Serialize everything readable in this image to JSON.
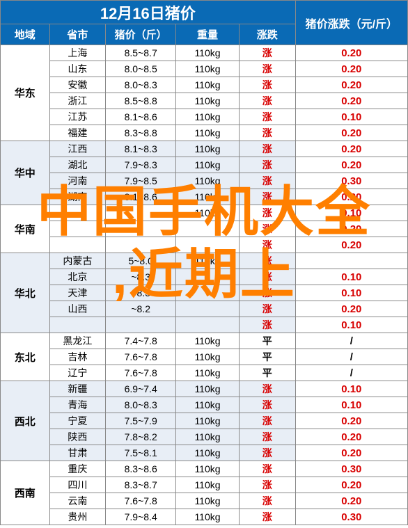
{
  "title": "12月16日猪价",
  "changeHeader": "猪价涨跌（元/斤）",
  "subHeaders": [
    "地域",
    "省市",
    "猪价（斤）",
    "重量",
    "涨跌"
  ],
  "overlay": {
    "line1": "中国手机大全",
    "line2": ",近期上"
  },
  "colors": {
    "headerBg": "#0a6ab5",
    "headerText": "#ffffff",
    "altRowBg": "#e8eef6",
    "upColor": "#d80000",
    "overlayColor": "#ff7f00",
    "border": "#888888"
  },
  "regions": [
    {
      "name": "华东",
      "alt": false,
      "rows": [
        {
          "prov": "上海",
          "price": "8.5~8.7",
          "wt": "110kg",
          "trend": "涨",
          "chg": "0.20"
        },
        {
          "prov": "山东",
          "price": "8.0~8.5",
          "wt": "110kg",
          "trend": "涨",
          "chg": "0.20"
        },
        {
          "prov": "安徽",
          "price": "8.0~8.3",
          "wt": "110kg",
          "trend": "涨",
          "chg": "0.20"
        },
        {
          "prov": "浙江",
          "price": "8.5~8.8",
          "wt": "110kg",
          "trend": "涨",
          "chg": "0.20"
        },
        {
          "prov": "江苏",
          "price": "8.1~8.6",
          "wt": "110kg",
          "trend": "涨",
          "chg": "0.10"
        },
        {
          "prov": "福建",
          "price": "8.3~8.8",
          "wt": "110kg",
          "trend": "涨",
          "chg": "0.20"
        }
      ]
    },
    {
      "name": "华中",
      "alt": true,
      "rows": [
        {
          "prov": "江西",
          "price": "8.1~8.3",
          "wt": "110kg",
          "trend": "涨",
          "chg": "0.20"
        },
        {
          "prov": "湖北",
          "price": "7.9~8.3",
          "wt": "110kg",
          "trend": "涨",
          "chg": "0.20"
        },
        {
          "prov": "河南",
          "price": "7.9~8.5",
          "wt": "110kg",
          "trend": "涨",
          "chg": "0.30"
        },
        {
          "prov": "湖南",
          "price": "8.1~8.6",
          "wt": "110kg",
          "trend": "涨",
          "chg": "0.20"
        }
      ]
    },
    {
      "name": "华南",
      "alt": false,
      "rows": [
        {
          "prov": "",
          "price": "",
          "wt": "110kg",
          "trend": "涨",
          "chg": "0.10"
        },
        {
          "prov": "",
          "price": "",
          "wt": "",
          "trend": "涨",
          "chg": "0.20"
        },
        {
          "prov": "",
          "price": "",
          "wt": "",
          "trend": "涨",
          "chg": "0.20"
        }
      ]
    },
    {
      "name": "华北",
      "alt": true,
      "rows": [
        {
          "prov": "内蒙古",
          "price": "5~8.0",
          "wt": "110kg",
          "trend": "涨",
          "chg": ""
        },
        {
          "prov": "北京",
          "price": "~8.3",
          "wt": "",
          "trend": "涨",
          "chg": "0.10"
        },
        {
          "prov": "天津",
          "price": "~8.3",
          "wt": "",
          "trend": "涨",
          "chg": "0.10"
        },
        {
          "prov": "山西",
          "price": "~8.2",
          "wt": "",
          "trend": "涨",
          "chg": "0.20"
        },
        {
          "prov": "",
          "price": "",
          "wt": "",
          "trend": "涨",
          "chg": "0.10"
        }
      ]
    },
    {
      "name": "东北",
      "alt": false,
      "rows": [
        {
          "prov": "黑龙江",
          "price": "7.4~7.8",
          "wt": "110kg",
          "trend": "平",
          "chg": "/"
        },
        {
          "prov": "吉林",
          "price": "7.6~7.8",
          "wt": "110kg",
          "trend": "平",
          "chg": "/"
        },
        {
          "prov": "辽宁",
          "price": "7.6~7.8",
          "wt": "110kg",
          "trend": "平",
          "chg": "/"
        }
      ]
    },
    {
      "name": "西北",
      "alt": true,
      "rows": [
        {
          "prov": "新疆",
          "price": "6.9~7.4",
          "wt": "110kg",
          "trend": "涨",
          "chg": "0.10"
        },
        {
          "prov": "青海",
          "price": "8.0~8.3",
          "wt": "110kg",
          "trend": "涨",
          "chg": "0.10"
        },
        {
          "prov": "宁夏",
          "price": "7.5~7.9",
          "wt": "110kg",
          "trend": "涨",
          "chg": "0.20"
        },
        {
          "prov": "陕西",
          "price": "7.8~8.2",
          "wt": "110kg",
          "trend": "涨",
          "chg": "0.20"
        },
        {
          "prov": "甘肃",
          "price": "7.5~8.1",
          "wt": "110kg",
          "trend": "涨",
          "chg": "0.20"
        }
      ]
    },
    {
      "name": "西南",
      "alt": false,
      "rows": [
        {
          "prov": "重庆",
          "price": "8.3~8.6",
          "wt": "110kg",
          "trend": "涨",
          "chg": "0.30"
        },
        {
          "prov": "四川",
          "price": "8.3~8.7",
          "wt": "110kg",
          "trend": "涨",
          "chg": "0.20"
        },
        {
          "prov": "云南",
          "price": "7.6~7.8",
          "wt": "110kg",
          "trend": "涨",
          "chg": "0.20"
        },
        {
          "prov": "贵州",
          "price": "7.9~8.4",
          "wt": "110kg",
          "trend": "涨",
          "chg": "0.30"
        }
      ]
    }
  ]
}
